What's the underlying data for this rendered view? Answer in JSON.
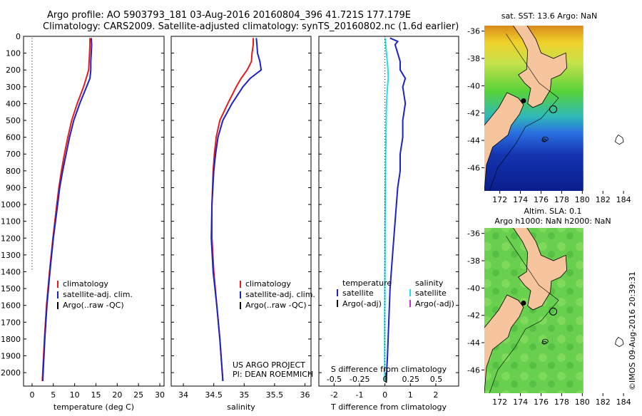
{
  "header": {
    "line1": "Argo profile: AO 5903793_181 03-Aug-2016 20160804_396 41.721S 177.179E",
    "line2": "Climatology: CARS2009. Satellite-adjusted climatology: synTS_20160802.nc (1.6d earlier)"
  },
  "depth_ticks": [
    "0",
    "100",
    "200",
    "300",
    "400",
    "500",
    "600",
    "700",
    "800",
    "900",
    "1000",
    "1100",
    "1200",
    "1300",
    "1400",
    "1500",
    "1600",
    "1700",
    "1800",
    "1900",
    "2000"
  ],
  "colors": {
    "climatology": "#e8191b",
    "satellite": "#1b23c8",
    "salinity_satellite": "#22e0e8",
    "argo": "#000000",
    "argo_salinity": "#cc33cc"
  },
  "chart_data": [
    {
      "type": "line",
      "title": "temperature",
      "xlabel": "temperature (deg C)",
      "ylabel": "",
      "xlim": [
        -2,
        31
      ],
      "ylim": [
        2080,
        0
      ],
      "xticks": [
        "0",
        "5",
        "10",
        "15",
        "20",
        "25",
        "30"
      ],
      "xtick_values": [
        0,
        5,
        10,
        15,
        20,
        25,
        30
      ],
      "legend": [
        "climatology",
        "satellite-adj. clim.",
        "Argo(..raw -QC)"
      ],
      "depth": [
        10,
        50,
        100,
        150,
        200,
        250,
        300,
        400,
        500,
        600,
        700,
        800,
        900,
        1000,
        1200,
        1400,
        1600,
        1800,
        2000,
        2050
      ],
      "series": [
        {
          "name": "climatology",
          "color": "#e8191b",
          "values": [
            13.6,
            13.6,
            13.5,
            13.4,
            13.3,
            12.7,
            12.1,
            10.6,
            9.3,
            8.4,
            7.6,
            6.9,
            6.3,
            5.8,
            4.9,
            4.1,
            3.4,
            2.9,
            2.5,
            2.4
          ]
        },
        {
          "name": "satellite-adj. clim.",
          "color": "#1b23c8",
          "values": [
            13.9,
            14.0,
            13.9,
            13.8,
            13.8,
            13.6,
            12.8,
            11.2,
            9.8,
            8.8,
            8.0,
            7.2,
            6.5,
            6.0,
            5.0,
            4.2,
            3.5,
            3.0,
            2.6,
            2.5
          ]
        }
      ],
      "argo_marker": "dotted"
    },
    {
      "type": "line",
      "title": "salinity",
      "xlabel": "salinity",
      "xlim": [
        33.8,
        36.1
      ],
      "ylim": [
        2080,
        0
      ],
      "xticks": [
        "34",
        "34.5",
        "35",
        "35.5",
        "36"
      ],
      "xtick_values": [
        34,
        34.5,
        35,
        35.5,
        36
      ],
      "legend": [
        "climatology",
        "satellite-adj. clim.",
        "Argo(..raw -QC)"
      ],
      "note_lines": [
        "US ARGO PROJECT",
        "PI: DEAN ROEMMICH"
      ],
      "depth": [
        10,
        50,
        100,
        150,
        200,
        250,
        300,
        400,
        500,
        600,
        700,
        800,
        1000,
        1200,
        1400,
        1600,
        1800,
        2000,
        2050
      ],
      "series": [
        {
          "name": "climatology",
          "color": "#e8191b",
          "values": [
            35.15,
            35.15,
            35.13,
            35.12,
            35.05,
            34.95,
            34.87,
            34.73,
            34.6,
            34.54,
            34.51,
            34.49,
            34.47,
            34.47,
            34.5,
            34.55,
            34.6,
            34.64,
            34.65
          ]
        },
        {
          "name": "satellite-adj. clim.",
          "color": "#1b23c8",
          "values": [
            35.2,
            35.21,
            35.22,
            35.26,
            35.28,
            35.1,
            34.98,
            34.8,
            34.65,
            34.57,
            34.53,
            34.5,
            34.47,
            34.46,
            34.49,
            34.55,
            34.6,
            34.64,
            34.65
          ]
        }
      ]
    },
    {
      "type": "line",
      "title": "difference",
      "xlabel": "T difference from climatology",
      "top_axis_label": "S difference from climatology",
      "xlim": [
        -2.6,
        2.9
      ],
      "ylim": [
        2080,
        0
      ],
      "xticks": [
        "-2",
        "-1",
        "0",
        "1",
        "2"
      ],
      "xtick_values": [
        -2,
        -1,
        0,
        1,
        2
      ],
      "s_ticks": [
        "-0.5",
        "-0.25",
        "0",
        "0.25",
        "0.5"
      ],
      "s_tick_values": [
        -0.5,
        -0.25,
        0,
        0.25,
        0.5
      ],
      "legend_t": {
        "header": "temperature",
        "items": [
          "satellite",
          "Argo(-adj)"
        ]
      },
      "legend_s": {
        "header": "salinity",
        "items": [
          "satellite",
          "Argo(-adj)"
        ]
      },
      "depth": [
        10,
        30,
        50,
        100,
        150,
        200,
        250,
        300,
        400,
        500,
        600,
        700,
        800,
        900,
        1000,
        1100,
        1200,
        1300,
        1500,
        1700,
        1900,
        2050
      ],
      "series": [
        {
          "name": "T satellite",
          "color": "#1b23c8",
          "values": [
            0.2,
            0.5,
            0.4,
            0.5,
            0.6,
            0.6,
            0.8,
            0.7,
            0.8,
            0.7,
            0.7,
            0.6,
            0.6,
            0.5,
            0.45,
            0.4,
            0.35,
            0.3,
            0.2,
            0.15,
            0.1,
            0.05
          ]
        },
        {
          "name": "S satellite",
          "color": "#22e0e8",
          "values": [
            0.0,
            0.02,
            0.03,
            0.06,
            0.09,
            0.12,
            0.13,
            0.1,
            0.06,
            0.05,
            0.04,
            0.03,
            0.02,
            0.015,
            0.01,
            0.005,
            0.0,
            0.0,
            -0.005,
            -0.01,
            -0.01,
            -0.01
          ]
        }
      ]
    },
    {
      "type": "heatmap",
      "title": "sat. SST: 13.6 Argo: NaN",
      "xticks": [
        "172",
        "174",
        "176",
        "178",
        "180",
        "182",
        "184"
      ],
      "xtick_values": [
        172,
        174,
        176,
        178,
        180,
        182,
        184
      ],
      "yticks": [
        "-36",
        "-38",
        "-40",
        "-42",
        "-44",
        "-46"
      ],
      "ytick_values": [
        -36,
        -38,
        -40,
        -42,
        -44,
        -46
      ],
      "xlim": [
        170.5,
        184.2
      ],
      "ylim": [
        -47.7,
        -35.6
      ],
      "data_lon_max": 180.1
    },
    {
      "type": "heatmap",
      "title_line1": "Altim. SLA: 0.1",
      "title_line2": "Argo h1000: NaN h2000: NaN",
      "xticks": [
        "172",
        "174",
        "176",
        "178",
        "180",
        "182",
        "184"
      ],
      "xtick_values": [
        172,
        174,
        176,
        178,
        180,
        182,
        184
      ],
      "yticks": [
        "-36",
        "-38",
        "-40",
        "-42",
        "-44",
        "-46"
      ],
      "ytick_values": [
        -36,
        -38,
        -40,
        -42,
        -44,
        -46
      ],
      "xlim": [
        170.5,
        184.2
      ],
      "ylim": [
        -47.7,
        -35.6
      ],
      "data_lon_max": 180.1
    }
  ],
  "footer": {
    "stamp": "©IMOS 09-Aug-2016 20:39:31"
  }
}
